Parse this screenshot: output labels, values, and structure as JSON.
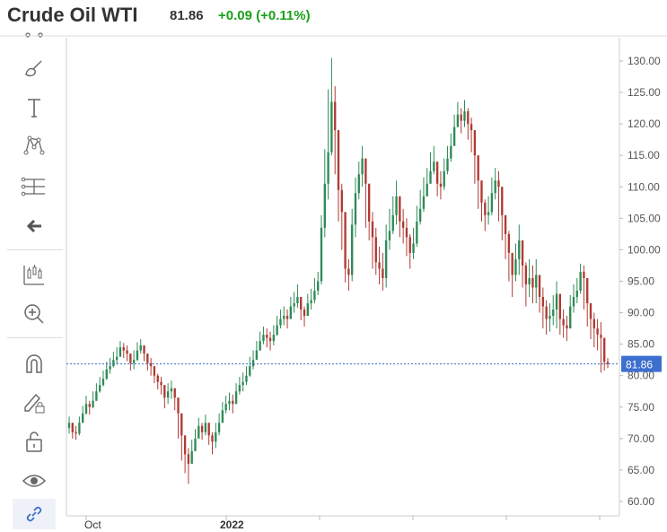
{
  "header": {
    "title": "Crude Oil WTI",
    "price": "81.86",
    "change": "+0.09 (+0.11%)"
  },
  "toolbar": {
    "icons": [
      "line-icon",
      "brush-icon",
      "text-icon",
      "pattern-icon",
      "measure-icon",
      "back-arrow-icon",
      "indicators-icon",
      "zoom-in-icon",
      "magnet-icon",
      "lock-drawing-icon",
      "unlock-icon",
      "eye-icon",
      "link-icon"
    ]
  },
  "colors": {
    "up": "#2e8b57",
    "down": "#b03a32",
    "last_price_line": "#3d6fcf",
    "last_price_label_bg": "#3d6fcf",
    "grid": "#e6e6e6",
    "change_positive": "#1aa01a"
  },
  "chart_data": {
    "type": "candlestick",
    "title": "Crude Oil WTI",
    "ylim": [
      58,
      133
    ],
    "y_ticks": [
      "130.00",
      "125.00",
      "120.00",
      "115.00",
      "110.00",
      "105.00",
      "100.00",
      "95.00",
      "90.00",
      "85.00",
      "80.00",
      "75.00",
      "70.00",
      "65.00",
      "60.00"
    ],
    "x_ticks": [
      "Oct",
      "2022"
    ],
    "last_price": 81.86,
    "last_price_label": "81.86",
    "grid": false,
    "closes": [
      72.5,
      71.0,
      70.8,
      72.5,
      74.0,
      75.5,
      75.0,
      76.0,
      77.5,
      78.5,
      79.5,
      81.0,
      81.5,
      82.5,
      83.0,
      84.5,
      84.0,
      83.5,
      82.0,
      82.5,
      84.0,
      84.8,
      83.5,
      82.0,
      81.5,
      80.0,
      79.0,
      78.5,
      76.5,
      77.5,
      78.0,
      76.5,
      74.0,
      70.5,
      67.5,
      66.0,
      68.0,
      70.0,
      72.0,
      71.0,
      72.5,
      70.5,
      69.5,
      71.0,
      72.5,
      74.5,
      75.5,
      76.0,
      75.5,
      77.5,
      78.5,
      79.0,
      80.0,
      81.5,
      82.5,
      84.0,
      85.5,
      86.5,
      86.0,
      85.5,
      86.5,
      88.0,
      89.0,
      89.5,
      89.0,
      91.0,
      91.5,
      92.5,
      90.5,
      89.5,
      91.5,
      92.0,
      93.5,
      95.0,
      103.5,
      110.5,
      115.5,
      123.5,
      119.0,
      109.5,
      106.0,
      97.0,
      96.0,
      104.0,
      109.0,
      112.0,
      114.5,
      110.5,
      104.5,
      102.0,
      98.0,
      97.0,
      95.5,
      101.5,
      103.0,
      105.5,
      108.5,
      104.5,
      103.5,
      102.0,
      99.5,
      101.0,
      104.5,
      106.5,
      108.5,
      110.5,
      112.5,
      114.0,
      110.5,
      110.0,
      112.5,
      114.5,
      116.5,
      119.5,
      121.5,
      120.5,
      122.0,
      120.0,
      119.0,
      115.0,
      111.0,
      107.5,
      105.5,
      106.0,
      109.0,
      111.0,
      110.0,
      105.5,
      102.5,
      99.5,
      96.0,
      98.5,
      101.5,
      97.5,
      94.5,
      95.5,
      94.0,
      96.0,
      92.5,
      91.0,
      89.0,
      89.5,
      90.5,
      93.0,
      89.0,
      88.0,
      87.5,
      91.0,
      92.5,
      93.5,
      96.5,
      95.5,
      91.5,
      89.0,
      87.5,
      86.5,
      86.0,
      82.2,
      81.86
    ],
    "highs": [
      73.5,
      72.5,
      72.0,
      73.5,
      75.2,
      76.8,
      76.0,
      77.5,
      78.8,
      79.8,
      80.8,
      82.2,
      82.8,
      83.8,
      84.5,
      85.5,
      85.2,
      84.8,
      83.5,
      84.0,
      85.3,
      85.8,
      84.8,
      83.3,
      82.8,
      81.3,
      80.3,
      79.8,
      78.0,
      78.8,
      79.2,
      78.0,
      75.5,
      72.0,
      69.0,
      68.5,
      69.8,
      71.5,
      73.3,
      72.5,
      73.8,
      72.0,
      71.0,
      72.5,
      74.0,
      75.8,
      76.8,
      77.3,
      77.0,
      78.8,
      79.8,
      80.5,
      81.5,
      83.0,
      84.0,
      85.5,
      87.0,
      87.8,
      87.5,
      87.0,
      88.0,
      89.5,
      90.5,
      91.0,
      90.5,
      92.5,
      93.3,
      94.5,
      92.5,
      91.0,
      93.0,
      93.8,
      95.5,
      96.5,
      105.5,
      116.0,
      125.5,
      130.5,
      126.0,
      115.0,
      110.5,
      104.0,
      98.5,
      106.5,
      111.5,
      114.0,
      116.5,
      113.5,
      108.5,
      106.0,
      103.5,
      100.5,
      99.5,
      104.0,
      106.5,
      108.5,
      111.0,
      108.0,
      106.5,
      105.0,
      102.5,
      103.5,
      107.0,
      109.5,
      111.5,
      113.0,
      115.5,
      116.5,
      113.5,
      112.5,
      114.5,
      116.5,
      118.5,
      121.5,
      123.5,
      122.5,
      123.8,
      122.5,
      121.0,
      118.5,
      114.0,
      110.5,
      108.0,
      108.5,
      111.5,
      113.0,
      112.5,
      109.0,
      105.5,
      103.0,
      99.5,
      101.0,
      104.0,
      101.0,
      98.0,
      98.5,
      97.5,
      98.5,
      96.0,
      94.0,
      92.0,
      91.5,
      92.8,
      95.0,
      92.5,
      90.5,
      89.5,
      92.8,
      94.5,
      95.5,
      97.8,
      97.5,
      94.5,
      91.5,
      90.0,
      89.0,
      88.5,
      86.0,
      82.8
    ],
    "lows": [
      70.8,
      70.0,
      69.8,
      70.5,
      72.8,
      73.8,
      73.8,
      74.8,
      76.0,
      77.3,
      78.3,
      79.3,
      80.3,
      81.3,
      81.8,
      83.0,
      82.8,
      82.3,
      80.8,
      81.0,
      82.3,
      83.5,
      82.3,
      80.8,
      80.0,
      78.8,
      77.8,
      77.0,
      74.8,
      75.5,
      76.3,
      74.5,
      70.0,
      66.5,
      64.5,
      62.8,
      66.0,
      68.0,
      70.0,
      69.8,
      70.5,
      69.0,
      67.5,
      68.5,
      70.5,
      72.5,
      74.0,
      74.5,
      74.0,
      75.5,
      77.0,
      77.5,
      78.5,
      79.8,
      81.0,
      82.5,
      84.0,
      85.0,
      84.5,
      84.0,
      84.8,
      86.3,
      87.5,
      88.0,
      87.5,
      89.0,
      90.0,
      90.8,
      88.8,
      87.8,
      89.5,
      90.5,
      91.5,
      92.8,
      94.5,
      102.0,
      108.0,
      115.0,
      112.0,
      104.5,
      100.0,
      94.8,
      93.5,
      95.0,
      102.0,
      108.0,
      110.0,
      103.5,
      101.5,
      97.0,
      96.0,
      94.5,
      93.5,
      94.0,
      100.0,
      102.5,
      104.0,
      102.0,
      101.0,
      99.0,
      97.0,
      98.5,
      100.5,
      104.0,
      106.0,
      108.5,
      110.5,
      112.0,
      108.5,
      108.0,
      109.5,
      112.0,
      114.0,
      116.5,
      119.5,
      118.5,
      119.5,
      117.5,
      115.5,
      110.5,
      106.5,
      104.5,
      103.0,
      104.0,
      105.5,
      108.0,
      104.5,
      101.5,
      98.5,
      95.0,
      92.5,
      95.0,
      96.0,
      94.0,
      91.0,
      92.5,
      91.5,
      91.5,
      90.0,
      87.5,
      86.5,
      87.0,
      88.0,
      87.5,
      86.5,
      86.0,
      85.5,
      87.5,
      90.0,
      91.5,
      93.0,
      90.5,
      87.8,
      85.8,
      84.5,
      84.0,
      80.5,
      80.8,
      81.2
    ]
  }
}
